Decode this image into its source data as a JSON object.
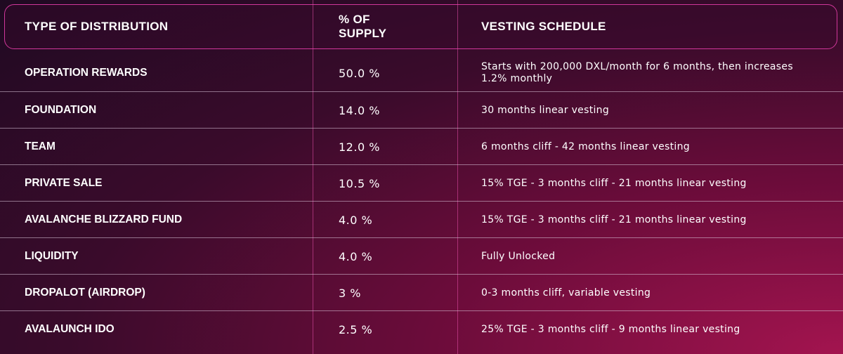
{
  "table": {
    "headers": [
      "TYPE OF DISTRIBUTION",
      "% OF SUPPLY",
      "VESTING SCHEDULE"
    ],
    "rows": [
      [
        "OPERATION REWARDS",
        "50.0 %",
        "Starts with 200,000 DXL/month for 6 months, then increases 1.2% monthly"
      ],
      [
        "FOUNDATION",
        "14.0 %",
        "30 months linear vesting"
      ],
      [
        "TEAM",
        "12.0 %",
        "6 months cliff - 42 months linear vesting"
      ],
      [
        "PRIVATE SALE",
        "10.5 %",
        "15% TGE - 3 months cliff - 21 months linear vesting"
      ],
      [
        "AVALANCHE BLIZZARD FUND",
        "4.0 %",
        "15% TGE - 3 months cliff - 21 months linear vesting"
      ],
      [
        "LIQUIDITY",
        "4.0 %",
        "Fully Unlocked"
      ],
      [
        "DROPALOT (AIRDROP)",
        "3 %",
        "0-3 months cliff, variable vesting"
      ],
      [
        "AVALAUNCH IDO",
        "2.5 %",
        "25% TGE - 3 months cliff - 9 months linear vesting"
      ]
    ]
  }
}
